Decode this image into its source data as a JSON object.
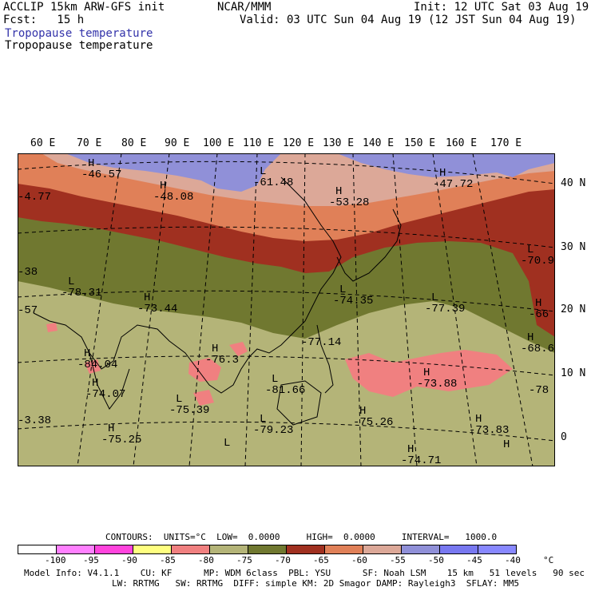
{
  "header": {
    "line1_left": "ACCLIP 15km ARW-GFS init",
    "line2_left": "Fcst:   15 h",
    "center": "NCAR/MMM",
    "init": "Init: 12 UTC Sat 03 Aug 19",
    "valid": "Valid: 03 UTC Sun 04 Aug 19 (12 JST Sun 04 Aug 19)",
    "field1": "Tropopause temperature",
    "field2": "Tropopause temperature"
  },
  "map": {
    "lon_labels": [
      "60 E",
      "70 E",
      "80 E",
      "90 E",
      "100 E",
      "110 E",
      "120 E",
      "130 E",
      "140 E",
      "150 E",
      "160 E",
      "170 E"
    ],
    "lat_labels": [
      "40 N",
      "30 N",
      "20 N",
      "10 N",
      "0"
    ],
    "annotations": [
      {
        "type": "H",
        "value": "-46.57"
      },
      {
        "type": "H",
        "value": "-48.08"
      },
      {
        "type": "L",
        "value": "-61.48"
      },
      {
        "type": "H",
        "value": "-53.28"
      },
      {
        "type": "H",
        "value": "-47.72"
      },
      {
        "type": "",
        "value": "-4.77"
      },
      {
        "type": "L",
        "value": "-70.9"
      },
      {
        "type": "",
        "value": "-38"
      },
      {
        "type": "L",
        "value": "-78.31"
      },
      {
        "type": "H",
        "value": "-73.44"
      },
      {
        "type": "",
        "value": "-57"
      },
      {
        "type": "L",
        "value": "-74.35"
      },
      {
        "type": "L",
        "value": "-77.39"
      },
      {
        "type": "H",
        "value": "-66"
      },
      {
        "type": "",
        "value": "-77.14"
      },
      {
        "type": "H",
        "value": "-68.6"
      },
      {
        "type": "H",
        "value": "-84.04"
      },
      {
        "type": "H",
        "value": "-76.3"
      },
      {
        "type": "L",
        "value": "-81.66"
      },
      {
        "type": "H",
        "value": "-73.88"
      },
      {
        "type": "H",
        "value": "-74.07"
      },
      {
        "type": "",
        "value": "-78"
      },
      {
        "type": "L",
        "value": "-75.39"
      },
      {
        "type": "H",
        "value": "-75.26"
      },
      {
        "type": "",
        "value": "-3.38"
      },
      {
        "type": "L",
        "value": "-79.23"
      },
      {
        "type": "H",
        "value": "-73.83"
      },
      {
        "type": "H",
        "value": "-75.25"
      },
      {
        "type": "H",
        "value": "-74.71"
      },
      {
        "type": "L",
        "value": ""
      },
      {
        "type": "H",
        "value": ""
      }
    ]
  },
  "colors": {
    "c_gt_neg100": "#ffffff",
    "c_neg95": "#ff80ff",
    "c_neg90": "#ff44dd",
    "c_neg85": "#ffff80",
    "c_neg80": "#f08080",
    "c_neg75": "#b4b478",
    "c_neg70": "#707830",
    "c_neg65": "#a03020",
    "c_neg60": "#e08058",
    "c_neg55": "#dca898",
    "c_neg50": "#9090d8",
    "c_neg45": "#7878f0",
    "c_neg40": "#8888ff"
  },
  "legend": {
    "contours_line": "CONTOURS:  UNITS=°C  LOW=  0.0000     HIGH=  0.0000     INTERVAL=   1000.0",
    "labels": [
      "-100",
      "-95",
      "-90",
      "-85",
      "-80",
      "-75",
      "-70",
      "-65",
      "-60",
      "-55",
      "-50",
      "-45",
      "-40",
      "°C"
    ]
  },
  "footer": {
    "line1": "Model Info: V4.1.1    CU: KF      MP: WDM 6class  PBL: YSU      SF: Noah LSM    15 km   51 levels   90 sec",
    "line2": "LW: RRTMG   SW: RRTMG  DIFF: simple KM: 2D Smagor DAMP: Rayleigh3  SFLAY: MM5"
  }
}
